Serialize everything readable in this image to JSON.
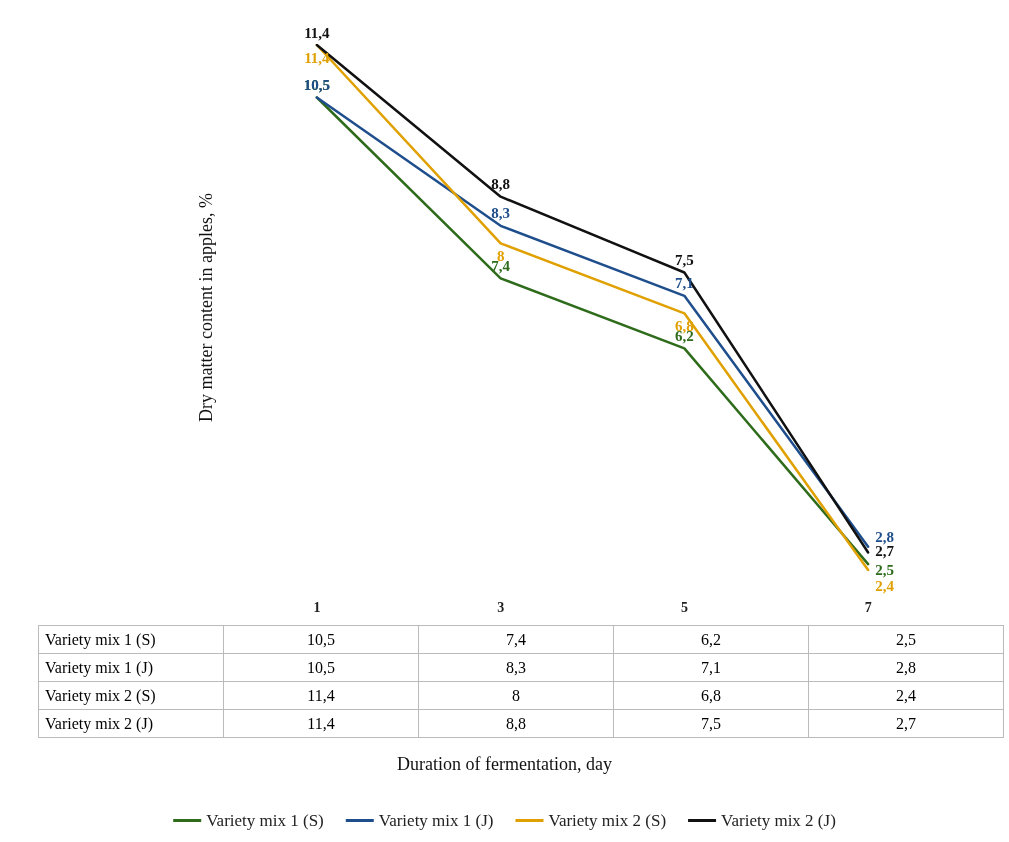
{
  "chart_data": {
    "type": "line",
    "annotations": [
      "Duration of fermentation, day"
    ],
    "ylabel": "Dry matter content in apples, %",
    "categories": [
      "1",
      "3",
      "5",
      "7"
    ],
    "series": [
      {
        "name": "Variety mix 1 (S)",
        "color": "#2e6b1a",
        "values": [
          10.5,
          7.4,
          6.2,
          2.5
        ],
        "value_labels": [
          "10,5",
          "7,4",
          "6,2",
          "2,5"
        ]
      },
      {
        "name": "Variety mix 1 (J)",
        "color": "#1f4e8c",
        "values": [
          10.5,
          8.3,
          7.1,
          2.8
        ],
        "value_labels": [
          "10,5",
          "8,3",
          "7,1",
          "2,8"
        ]
      },
      {
        "name": "Variety mix 2 (S)",
        "color": "#e0a000",
        "values": [
          11.4,
          8,
          6.8,
          2.4
        ],
        "value_labels": [
          "11,4",
          "8",
          "6,8",
          "2,4"
        ]
      },
      {
        "name": "Variety mix 2 (J)",
        "color": "#111111",
        "values": [
          11.4,
          8.8,
          7.5,
          2.7
        ],
        "value_labels": [
          "11,4",
          "8,8",
          "7,5",
          "2,7"
        ]
      }
    ],
    "legend": "bottom",
    "grid": false,
    "marker": "none",
    "line_style": "solid"
  }
}
